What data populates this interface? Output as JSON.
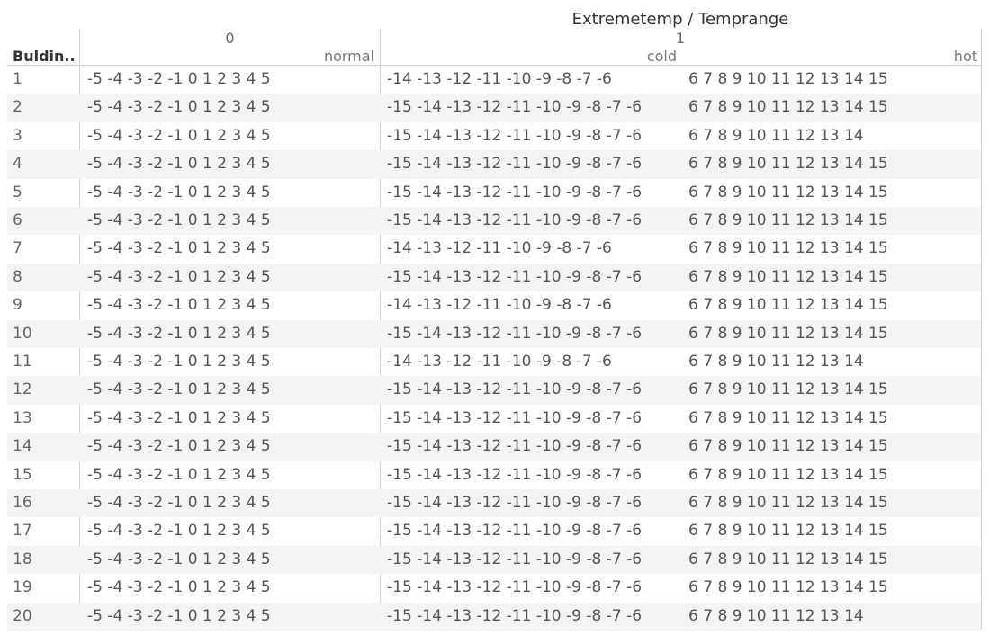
{
  "chart_data": {
    "type": "table",
    "title": "Extremetemp / Temprange",
    "row_header": "Buldin..",
    "column_groups": [
      {
        "label": "0",
        "columns": [
          "normal"
        ]
      },
      {
        "label": "1",
        "columns": [
          "cold",
          "hot"
        ]
      }
    ],
    "rows": [
      {
        "label": "1",
        "normal": "-5 -4 -3 -2 -1 0 1 2 3 4 5",
        "cold": "-14 -13 -12 -11 -10 -9 -8 -7 -6",
        "hot": "6 7 8 9 10 11 12 13 14 15"
      },
      {
        "label": "2",
        "normal": "-5 -4 -3 -2 -1 0 1 2 3 4 5",
        "cold": "-15 -14 -13 -12 -11 -10 -9 -8 -7 -6",
        "hot": "6 7 8 9 10 11 12 13 14 15"
      },
      {
        "label": "3",
        "normal": "-5 -4 -3 -2 -1 0 1 2 3 4 5",
        "cold": "-15 -14 -13 -12 -11 -10 -9 -8 -7 -6",
        "hot": "6 7 8 9 10 11 12 13 14"
      },
      {
        "label": "4",
        "normal": "-5 -4 -3 -2 -1 0 1 2 3 4 5",
        "cold": "-15 -14 -13 -12 -11 -10 -9 -8 -7 -6",
        "hot": "6 7 8 9 10 11 12 13 14 15"
      },
      {
        "label": "5",
        "normal": "-5 -4 -3 -2 -1 0 1 2 3 4 5",
        "cold": "-15 -14 -13 -12 -11 -10 -9 -8 -7 -6",
        "hot": "6 7 8 9 10 11 12 13 14 15"
      },
      {
        "label": "6",
        "normal": "-5 -4 -3 -2 -1 0 1 2 3 4 5",
        "cold": "-15 -14 -13 -12 -11 -10 -9 -8 -7 -6",
        "hot": "6 7 8 9 10 11 12 13 14 15"
      },
      {
        "label": "7",
        "normal": "-5 -4 -3 -2 -1 0 1 2 3 4 5",
        "cold": "-14 -13 -12 -11 -10 -9 -8 -7 -6",
        "hot": "6 7 8 9 10 11 12 13 14 15"
      },
      {
        "label": "8",
        "normal": "-5 -4 -3 -2 -1 0 1 2 3 4 5",
        "cold": "-15 -14 -13 -12 -11 -10 -9 -8 -7 -6",
        "hot": "6 7 8 9 10 11 12 13 14 15"
      },
      {
        "label": "9",
        "normal": "-5 -4 -3 -2 -1 0 1 2 3 4 5",
        "cold": "-14 -13 -12 -11 -10 -9 -8 -7 -6",
        "hot": "6 7 8 9 10 11 12 13 14 15"
      },
      {
        "label": "10",
        "normal": "-5 -4 -3 -2 -1 0 1 2 3 4 5",
        "cold": "-15 -14 -13 -12 -11 -10 -9 -8 -7 -6",
        "hot": "6 7 8 9 10 11 12 13 14 15"
      },
      {
        "label": "11",
        "normal": "-5 -4 -3 -2 -1 0 1 2 3 4 5",
        "cold": "-14 -13 -12 -11 -10 -9 -8 -7 -6",
        "hot": "6 7 8 9 10 11 12 13 14"
      },
      {
        "label": "12",
        "normal": "-5 -4 -3 -2 -1 0 1 2 3 4 5",
        "cold": "-15 -14 -13 -12 -11 -10 -9 -8 -7 -6",
        "hot": "6 7 8 9 10 11 12 13 14 15"
      },
      {
        "label": "13",
        "normal": "-5 -4 -3 -2 -1 0 1 2 3 4 5",
        "cold": "-15 -14 -13 -12 -11 -10 -9 -8 -7 -6",
        "hot": "6 7 8 9 10 11 12 13 14 15"
      },
      {
        "label": "14",
        "normal": "-5 -4 -3 -2 -1 0 1 2 3 4 5",
        "cold": "-15 -14 -13 -12 -11 -10 -9 -8 -7 -6",
        "hot": "6 7 8 9 10 11 12 13 14 15"
      },
      {
        "label": "15",
        "normal": "-5 -4 -3 -2 -1 0 1 2 3 4 5",
        "cold": "-15 -14 -13 -12 -11 -10 -9 -8 -7 -6",
        "hot": "6 7 8 9 10 11 12 13 14 15"
      },
      {
        "label": "16",
        "normal": "-5 -4 -3 -2 -1 0 1 2 3 4 5",
        "cold": "-15 -14 -13 -12 -11 -10 -9 -8 -7 -6",
        "hot": "6 7 8 9 10 11 12 13 14 15"
      },
      {
        "label": "17",
        "normal": "-5 -4 -3 -2 -1 0 1 2 3 4 5",
        "cold": "-15 -14 -13 -12 -11 -10 -9 -8 -7 -6",
        "hot": "6 7 8 9 10 11 12 13 14 15"
      },
      {
        "label": "18",
        "normal": "-5 -4 -3 -2 -1 0 1 2 3 4 5",
        "cold": "-15 -14 -13 -12 -11 -10 -9 -8 -7 -6",
        "hot": "6 7 8 9 10 11 12 13 14 15"
      },
      {
        "label": "19",
        "normal": "-5 -4 -3 -2 -1 0 1 2 3 4 5",
        "cold": "-15 -14 -13 -12 -11 -10 -9 -8 -7 -6",
        "hot": "6 7 8 9 10 11 12 13 14 15"
      },
      {
        "label": "20",
        "normal": "-5 -4 -3 -2 -1 0 1 2 3 4 5",
        "cold": "-15 -14 -13 -12 -11 -10 -9 -8 -7 -6",
        "hot": "6 7 8 9 10 11 12 13 14"
      }
    ]
  }
}
